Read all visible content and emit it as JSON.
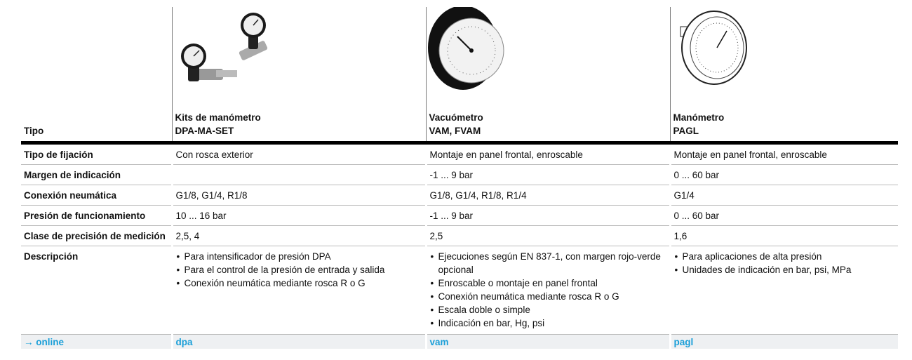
{
  "table": {
    "header": {
      "label": "Tipo",
      "products": [
        {
          "name": "Kits de manómetro",
          "code": "DPA-MA-SET"
        },
        {
          "name": "Vacuómetro",
          "code": "VAM, FVAM"
        },
        {
          "name": "Manómetro",
          "code": "PAGL"
        }
      ]
    },
    "rows": [
      {
        "label": "Tipo de fijación",
        "cells": [
          "Con rosca exterior",
          "Montaje en panel frontal, enroscable",
          "Montaje en panel frontal, enroscable"
        ]
      },
      {
        "label": "Margen de indicación",
        "cells": [
          null,
          "-1 ... 9 bar",
          "0 ... 60 bar"
        ]
      },
      {
        "label": "Conexión neumática",
        "cells": [
          "G1/8, G1/4, R1/8",
          "G1/8, G1/4, R1/8, R1/4",
          "G1/4"
        ]
      },
      {
        "label": "Presión de funcionamiento",
        "cells": [
          "10 ... 16 bar",
          "-1 ... 9 bar",
          "0 ... 60 bar"
        ]
      },
      {
        "label": "Clase de precisión de medición",
        "cells": [
          "2,5, 4",
          "2,5",
          "1,6"
        ]
      }
    ],
    "description": {
      "label": "Descripción",
      "cells": [
        [
          "Para intensificador de presión DPA",
          "Para el control de la presión de entrada y salida",
          "Conexión neumática mediante rosca R o G"
        ],
        [
          "Ejecuciones según EN 837-1, con margen rojo-verde opcional",
          "Enroscable o montaje en panel frontal",
          "Conexión neumática mediante rosca R o G",
          "Escala doble o simple",
          "Indicación en bar, Hg, psi"
        ],
        [
          "Para aplicaciones de alta presión",
          "Unidades de indicación en bar, psi, MPa"
        ]
      ]
    },
    "links": {
      "label": "→ online",
      "cells": [
        "dpa",
        "vam",
        "pagl"
      ]
    }
  }
}
